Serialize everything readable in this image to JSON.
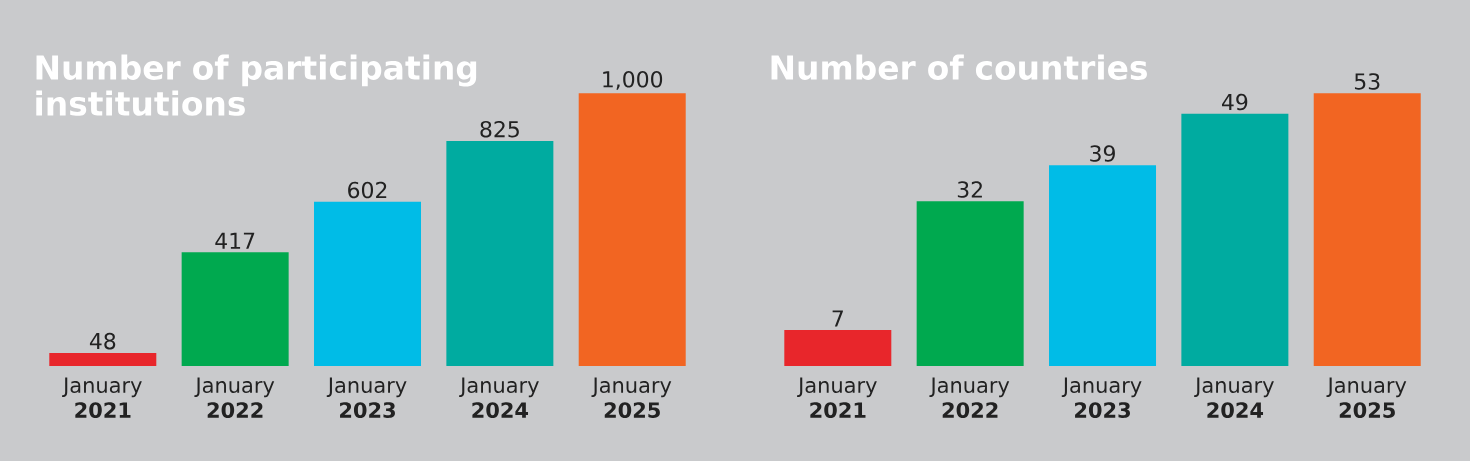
{
  "chart_data": [
    {
      "type": "bar",
      "title": "Number of participating institutions",
      "categories": [
        "January **2021**",
        "January **2022**",
        "January **2023**",
        "January **2024**",
        "January **2025**"
      ],
      "values": [
        48,
        417,
        602,
        825,
        1000
      ],
      "value_labels": [
        "48",
        "417",
        "602",
        "825",
        "1,000"
      ],
      "colors": [
        "#e8262b",
        "#00a94f",
        "#00bce7",
        "#00aba0",
        "#f26522"
      ]
    },
    {
      "type": "bar",
      "title": "Number of countries",
      "categories": [
        "January **2021**",
        "January **2022**",
        "January **2023**",
        "January **2024**",
        "January **2025**"
      ],
      "values": [
        7,
        32,
        39,
        49,
        53
      ],
      "value_labels": [
        "7",
        "32",
        "39",
        "49",
        "53"
      ],
      "colors": [
        "#e8262b",
        "#00a94f",
        "#00bce7",
        "#00aba0",
        "#f26522"
      ]
    }
  ]
}
